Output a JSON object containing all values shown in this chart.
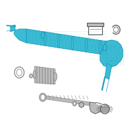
{
  "bg": "#ffffff",
  "blue": "#3bbcd4",
  "blue_dk": "#1e9ab8",
  "blue_fill": "#3bbcd4",
  "gray": "#888888",
  "gray_lt": "#bbbbbb",
  "gray_dk": "#555555",
  "white": "#ffffff",
  "figsize": [
    2.0,
    2.0
  ],
  "dpi": 100
}
